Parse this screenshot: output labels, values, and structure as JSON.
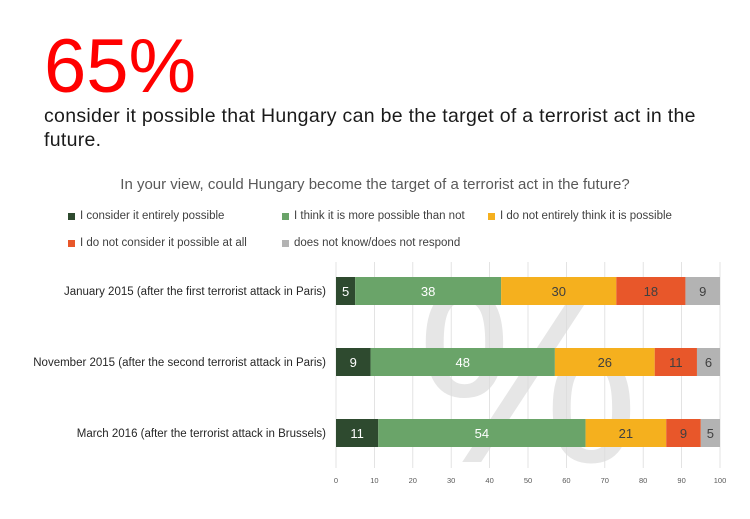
{
  "headline": {
    "percent": "65%",
    "text": "consider it possible that Hungary can be the target of a terrorist act in the future."
  },
  "chart_data": {
    "type": "bar",
    "orientation": "horizontal",
    "stacked": true,
    "title": "In your view, could Hungary become the target of a terrorist act in the future?",
    "categories": [
      "January 2015 (after the first terrorist attack in Paris)",
      "November 2015 (after the second terrorist attack in Paris)",
      "March 2016 (after the terrorist attack in Brussels)"
    ],
    "series": [
      {
        "name": "I consider it entirely possible",
        "color": "#2e4a2f",
        "values": [
          5,
          9,
          11
        ]
      },
      {
        "name": "I think it is more possible than not",
        "color": "#6aa469",
        "values": [
          38,
          48,
          54
        ]
      },
      {
        "name": "I do not entirely think it is possible",
        "color": "#f5b01e",
        "values": [
          30,
          26,
          21
        ]
      },
      {
        "name": "I do not consider it possible at all",
        "color": "#e8572a",
        "values": [
          18,
          11,
          9
        ]
      },
      {
        "name": "does not know/does not respond",
        "color": "#b3b3b3",
        "values": [
          9,
          6,
          5
        ]
      }
    ],
    "xlim": [
      0,
      100
    ],
    "xticks": [
      0,
      10,
      20,
      30,
      40,
      50,
      60,
      70,
      80,
      90,
      100
    ],
    "grid": true,
    "legend_position": "top",
    "background_glyph": "%"
  }
}
